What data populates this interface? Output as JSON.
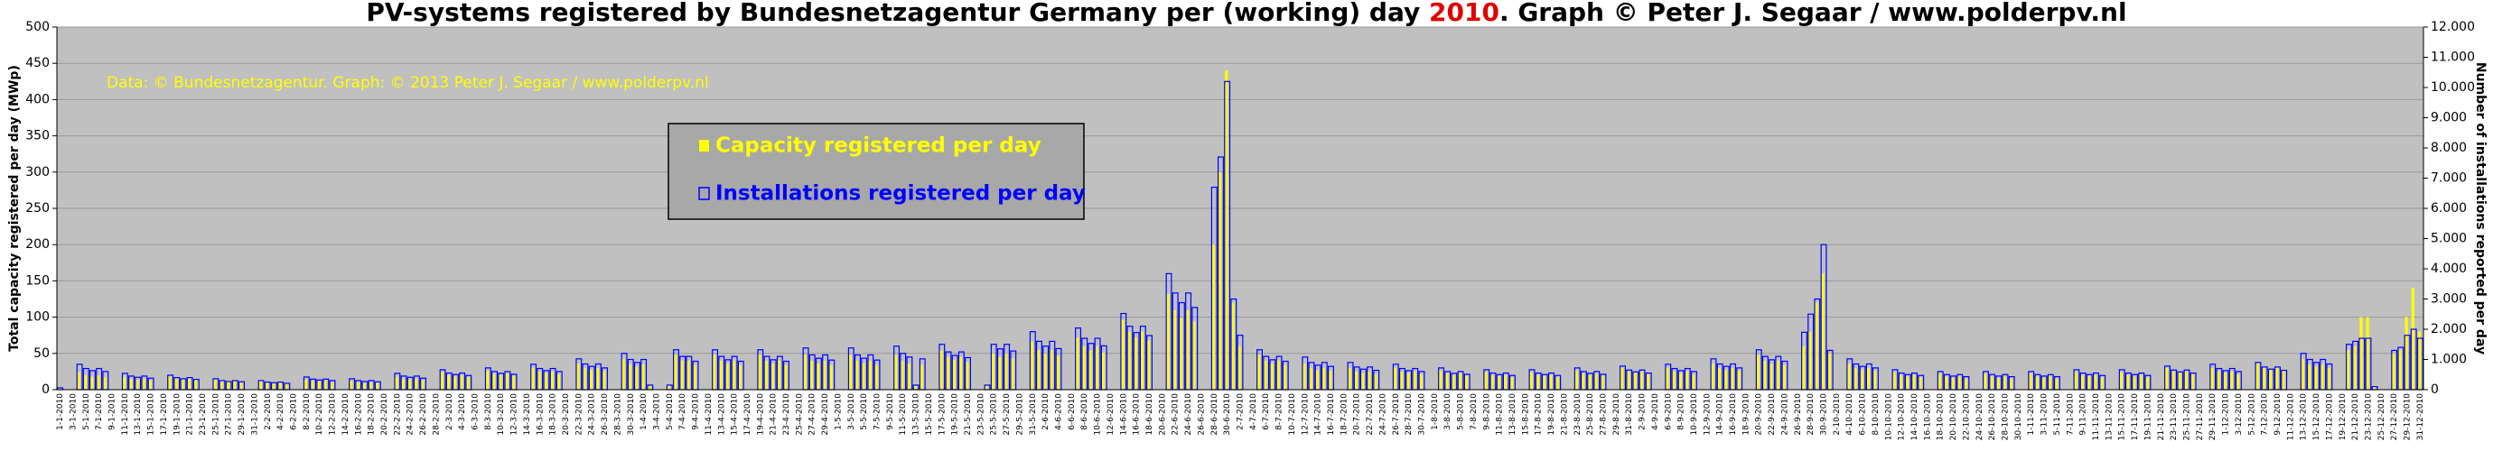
{
  "chart_data": {
    "type": "bar",
    "title_parts": [
      {
        "text": "PV-systems registered by Bundesnetzagentur Germany per (working) day ",
        "color": "#000000"
      },
      {
        "text": "2010",
        "color": "#e00000"
      },
      {
        "text": ". Graph © Peter J. Segaar / www.polderpv.nl",
        "color": "#000000"
      }
    ],
    "annotation": "Data: © Bundesnetzagentur. Graph: © 2013 Peter J. Segaar / www.polderpv.nl",
    "y_label": "Total capacity registered per day (MWp)",
    "y2_label": "Number of installations reported per day",
    "ylim": [
      0,
      500
    ],
    "yticks": [
      0,
      50,
      100,
      150,
      200,
      250,
      300,
      350,
      400,
      450,
      500
    ],
    "y2lim": [
      0,
      12000
    ],
    "y2ticks": [
      0,
      {
        "value": 1000,
        "label": "1.000"
      },
      {
        "value": 2000,
        "label": "2.000"
      },
      {
        "value": 3000,
        "label": "3.000"
      },
      {
        "value": 4000,
        "label": "4.000"
      },
      {
        "value": 5000,
        "label": "5.000"
      },
      {
        "value": 6000,
        "label": "6.000"
      },
      {
        "value": 7000,
        "label": "7.000"
      },
      {
        "value": 8000,
        "label": "8.000"
      },
      {
        "value": 9000,
        "label": "9.000"
      },
      {
        "value": 10000,
        "label": "10.000"
      },
      {
        "value": 11000,
        "label": "11.000"
      },
      {
        "value": 12000,
        "label": "12.000"
      }
    ],
    "grid": true,
    "categories": [
      "1-1-2010",
      null,
      "3-1-2010",
      null,
      "5-1-2010",
      null,
      "7-1-2010",
      null,
      "9-1-2010",
      null,
      "11-1-2010",
      null,
      "13-1-2010",
      null,
      "15-1-2010",
      null,
      "17-1-2010",
      null,
      "19-1-2010",
      null,
      "21-1-2010",
      null,
      "23-1-2010",
      null,
      "25-1-2010",
      null,
      "27-1-2010",
      null,
      "29-1-2010",
      null,
      "31-1-2010",
      null,
      "2-2-2010",
      null,
      "4-2-2010",
      null,
      "6-2-2010",
      null,
      "8-2-2010",
      null,
      "10-2-2010",
      null,
      "12-2-2010",
      null,
      "14-2-2010",
      null,
      "16-2-2010",
      null,
      "18-2-2010",
      null,
      "20-2-2010",
      null,
      "22-2-2010",
      null,
      "24-2-2010",
      null,
      "26-2-2010",
      null,
      "28-2-2010",
      null,
      "2-3-2010",
      null,
      "4-3-2010",
      null,
      "6-3-2010",
      null,
      "8-3-2010",
      null,
      "10-3-2010",
      null,
      "12-3-2010",
      null,
      "14-3-2010",
      null,
      "16-3-2010",
      null,
      "18-3-2010",
      null,
      "20-3-2010",
      null,
      "22-3-2010",
      null,
      "24-3-2010",
      null,
      "26-3-2010",
      null,
      "28-3-2010",
      null,
      "30-3-2010",
      null,
      "1-4-2010",
      null,
      "3-4-2010",
      null,
      "5-4-2010",
      null,
      "7-4-2010",
      null,
      "9-4-2010",
      null,
      "11-4-2010",
      null,
      "13-4-2010",
      null,
      "15-4-2010",
      null,
      "17-4-2010",
      null,
      "19-4-2010",
      null,
      "21-4-2010",
      null,
      "23-4-2010",
      null,
      "25-4-2010",
      null,
      "27-4-2010",
      null,
      "29-4-2010",
      null,
      "1-5-2010",
      null,
      "3-5-2010",
      null,
      "5-5-2010",
      null,
      "7-5-2010",
      null,
      "9-5-2010",
      null,
      "11-5-2010",
      null,
      "13-5-2010",
      null,
      "15-5-2010",
      null,
      "17-5-2010",
      null,
      "19-5-2010",
      null,
      "21-5-2010",
      null,
      "23-5-2010",
      null,
      "25-5-2010",
      null,
      "27-5-2010",
      null,
      "29-5-2010",
      null,
      "31-5-2010",
      null,
      "2-6-2010",
      null,
      "4-6-2010",
      null,
      "6-6-2010",
      null,
      "8-6-2010",
      null,
      "10-6-2010",
      null,
      "12-6-2010",
      null,
      "14-6-2010",
      null,
      "16-6-2010",
      null,
      "18-6-2010",
      null,
      "20-6-2010",
      null,
      "22-6-2010",
      null,
      "24-6-2010",
      null,
      "26-6-2010",
      null,
      "28-6-2010",
      null,
      "30-6-2010",
      null,
      "2-7-2010",
      null,
      "4-7-2010",
      null,
      "6-7-2010",
      null,
      "8-7-2010",
      null,
      "10-7-2010",
      null,
      "12-7-2010",
      null,
      "14-7-2010",
      null,
      "16-7-2010",
      null,
      "18-7-2010",
      null,
      "20-7-2010",
      null,
      "22-7-2010",
      null,
      "24-7-2010",
      null,
      "26-7-2010",
      null,
      "28-7-2010",
      null,
      "30-7-2010",
      null,
      "1-8-2010",
      null,
      "3-8-2010",
      null,
      "5-8-2010",
      null,
      "7-8-2010",
      null,
      "9-8-2010",
      null,
      "11-8-2010",
      null,
      "13-8-2010",
      null,
      "15-8-2010",
      null,
      "17-8-2010",
      null,
      "19-8-2010",
      null,
      "21-8-2010",
      null,
      "23-8-2010",
      null,
      "25-8-2010",
      null,
      "27-8-2010",
      null,
      "29-8-2010",
      null,
      "31-8-2010",
      null,
      "2-9-2010",
      null,
      "4-9-2010",
      null,
      "6-9-2010",
      null,
      "8-9-2010",
      null,
      "10-9-2010",
      null,
      "12-9-2010",
      null,
      "14-9-2010",
      null,
      "16-9-2010",
      null,
      "18-9-2010",
      null,
      "20-9-2010",
      null,
      "22-9-2010",
      null,
      "24-9-2010",
      null,
      "26-9-2010",
      null,
      "28-9-2010",
      null,
      "30-9-2010",
      null,
      "2-10-2010",
      null,
      "4-10-2010",
      null,
      "6-10-2010",
      null,
      "8-10-2010",
      null,
      "10-10-2010",
      null,
      "12-10-2010",
      null,
      "14-10-2010",
      null,
      "16-10-2010",
      null,
      "18-10-2010",
      null,
      "20-10-2010",
      null,
      "22-10-2010",
      null,
      "24-10-2010",
      null,
      "26-10-2010",
      null,
      "28-10-2010",
      null,
      "30-10-2010",
      null,
      "1-11-2010",
      null,
      "3-11-2010",
      null,
      "5-11-2010",
      null,
      "7-11-2010",
      null,
      "9-11-2010",
      null,
      "11-11-2010",
      null,
      "13-11-2010",
      null,
      "15-11-2010",
      null,
      "17-11-2010",
      null,
      "19-11-2010",
      null,
      "21-11-2010",
      null,
      "23-11-2010",
      null,
      "25-11-2010",
      null,
      "27-11-2010",
      null,
      "29-11-2010",
      null,
      "1-12-2010",
      null,
      "3-12-2010",
      null,
      "5-12-2010",
      null,
      "7-12-2010",
      null,
      "9-12-2010",
      null,
      "11-12-2010",
      null,
      "13-12-2010",
      null,
      "15-12-2010",
      null,
      "17-12-2010",
      null,
      "19-12-2010",
      null,
      "21-12-2010",
      null,
      "23-12-2010",
      null,
      "25-12-2010",
      null,
      "27-12-2010",
      null,
      "29-12-2010",
      null,
      "31-12-2010"
    ],
    "series": [
      {
        "name": "Capacity registered per day",
        "color": "#ffff00",
        "values": [
          2,
          0,
          0,
          24,
          20,
          18,
          20,
          17,
          0,
          0,
          18,
          15,
          14,
          15,
          13,
          0,
          0,
          18,
          15,
          14,
          15,
          13,
          0,
          0,
          14,
          12,
          11,
          12,
          10,
          0,
          0,
          12,
          10,
          9,
          10,
          9,
          0,
          0,
          14,
          12,
          11,
          12,
          10,
          0,
          0,
          12,
          10,
          9,
          10,
          9,
          0,
          0,
          18,
          15,
          14,
          15,
          13,
          0,
          0,
          24,
          20,
          18,
          20,
          17,
          0,
          0,
          26,
          22,
          20,
          22,
          19,
          0,
          0,
          30,
          25,
          23,
          25,
          21,
          0,
          0,
          36,
          30,
          27,
          30,
          26,
          0,
          0,
          42,
          35,
          32,
          35,
          5,
          0,
          0,
          5,
          48,
          40,
          40,
          34,
          0,
          0,
          48,
          40,
          36,
          40,
          34,
          0,
          0,
          48,
          40,
          36,
          40,
          34,
          0,
          0,
          48,
          40,
          36,
          40,
          34,
          0,
          0,
          48,
          40,
          36,
          40,
          34,
          0,
          0,
          48,
          40,
          36,
          5,
          34,
          0,
          0,
          54,
          45,
          41,
          45,
          38,
          0,
          0,
          5,
          50,
          45,
          50,
          43,
          0,
          0,
          66,
          55,
          50,
          55,
          47,
          0,
          0,
          72,
          60,
          54,
          60,
          51,
          0,
          0,
          96,
          80,
          72,
          80,
          68,
          0,
          0,
          132,
          110,
          99,
          110,
          94,
          0,
          0,
          200,
          300,
          440,
          120,
          60,
          0,
          0,
          48,
          40,
          36,
          40,
          34,
          0,
          0,
          36,
          30,
          27,
          30,
          26,
          0,
          0,
          30,
          25,
          23,
          25,
          21,
          0,
          0,
          30,
          25,
          23,
          25,
          21,
          0,
          0,
          26,
          22,
          20,
          22,
          19,
          0,
          0,
          24,
          20,
          18,
          20,
          17,
          0,
          0,
          24,
          20,
          18,
          20,
          17,
          0,
          0,
          26,
          22,
          20,
          22,
          19,
          0,
          0,
          30,
          25,
          23,
          25,
          21,
          0,
          0,
          30,
          25,
          23,
          25,
          21,
          0,
          0,
          36,
          30,
          27,
          30,
          26,
          0,
          0,
          48,
          40,
          36,
          40,
          34,
          0,
          0,
          60,
          80,
          120,
          160,
          50,
          0,
          0,
          36,
          30,
          27,
          30,
          26,
          0,
          0,
          24,
          20,
          18,
          20,
          17,
          0,
          0,
          22,
          18,
          16,
          18,
          15,
          0,
          0,
          22,
          18,
          16,
          18,
          15,
          0,
          0,
          22,
          18,
          16,
          18,
          15,
          0,
          0,
          24,
          20,
          18,
          20,
          17,
          0,
          0,
          24,
          20,
          18,
          20,
          17,
          0,
          0,
          30,
          25,
          23,
          25,
          21,
          0,
          0,
          30,
          25,
          23,
          25,
          21,
          0,
          0,
          36,
          30,
          27,
          30,
          26,
          0,
          0,
          42,
          35,
          32,
          35,
          30,
          0,
          0,
          55,
          60,
          100,
          100,
          5,
          0,
          0,
          50,
          55,
          100,
          140,
          80
        ]
      },
      {
        "name": "Installations registered per day",
        "color": "#0000ff",
        "axis": "y2",
        "values": [
          60,
          0,
          0,
          840,
          700,
          630,
          700,
          600,
          0,
          0,
          540,
          450,
          410,
          450,
          380,
          0,
          0,
          480,
          400,
          360,
          400,
          340,
          0,
          0,
          360,
          300,
          270,
          300,
          260,
          0,
          0,
          300,
          250,
          230,
          250,
          210,
          0,
          0,
          420,
          350,
          320,
          350,
          300,
          0,
          0,
          360,
          300,
          270,
          300,
          260,
          0,
          0,
          540,
          450,
          410,
          450,
          380,
          0,
          0,
          660,
          550,
          500,
          550,
          470,
          0,
          0,
          720,
          600,
          540,
          600,
          510,
          0,
          0,
          840,
          700,
          630,
          700,
          600,
          0,
          0,
          1020,
          850,
          770,
          850,
          720,
          0,
          0,
          1200,
          1000,
          900,
          1000,
          150,
          0,
          0,
          150,
          1320,
          1100,
          1100,
          940,
          0,
          0,
          1320,
          1100,
          990,
          1100,
          940,
          0,
          0,
          1320,
          1100,
          990,
          1100,
          940,
          0,
          0,
          1380,
          1150,
          1040,
          1150,
          980,
          0,
          0,
          1380,
          1150,
          1040,
          1150,
          980,
          0,
          0,
          1440,
          1200,
          1080,
          150,
          1020,
          0,
          0,
          1500,
          1250,
          1130,
          1250,
          1060,
          0,
          0,
          150,
          1500,
          1350,
          1500,
          1280,
          0,
          0,
          1920,
          1600,
          1440,
          1600,
          1360,
          0,
          0,
          2040,
          1700,
          1530,
          1700,
          1450,
          0,
          0,
          2520,
          2100,
          1890,
          2100,
          1790,
          0,
          0,
          3840,
          3200,
          2880,
          3200,
          2720,
          0,
          0,
          6700,
          7700,
          10200,
          3000,
          1800,
          0,
          0,
          1320,
          1100,
          990,
          1100,
          940,
          0,
          0,
          1080,
          900,
          810,
          900,
          770,
          0,
          0,
          900,
          750,
          680,
          750,
          640,
          0,
          0,
          840,
          700,
          630,
          700,
          600,
          0,
          0,
          720,
          600,
          540,
          600,
          510,
          0,
          0,
          660,
          550,
          500,
          550,
          470,
          0,
          0,
          660,
          550,
          500,
          550,
          470,
          0,
          0,
          720,
          600,
          540,
          600,
          510,
          0,
          0,
          780,
          650,
          590,
          650,
          550,
          0,
          0,
          840,
          700,
          630,
          700,
          600,
          0,
          0,
          1020,
          850,
          770,
          850,
          720,
          0,
          0,
          1320,
          1100,
          990,
          1100,
          940,
          0,
          0,
          1900,
          2500,
          3000,
          4800,
          1300,
          0,
          0,
          1020,
          850,
          770,
          850,
          720,
          0,
          0,
          660,
          550,
          500,
          550,
          470,
          0,
          0,
          600,
          500,
          450,
          500,
          430,
          0,
          0,
          600,
          500,
          450,
          500,
          430,
          0,
          0,
          600,
          500,
          450,
          500,
          430,
          0,
          0,
          660,
          550,
          500,
          550,
          470,
          0,
          0,
          660,
          550,
          500,
          550,
          470,
          0,
          0,
          780,
          650,
          590,
          650,
          550,
          0,
          0,
          840,
          700,
          630,
          700,
          600,
          0,
          0,
          900,
          750,
          680,
          750,
          640,
          0,
          0,
          1200,
          1000,
          900,
          1000,
          850,
          0,
          0,
          1500,
          1600,
          1700,
          1700,
          100,
          0,
          0,
          1300,
          1400,
          1800,
          2000,
          1700
        ]
      }
    ]
  }
}
